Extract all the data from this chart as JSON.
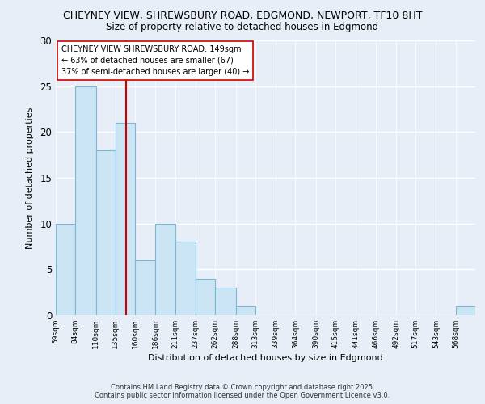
{
  "title_line1": "CHEYNEY VIEW, SHREWSBURY ROAD, EDGMOND, NEWPORT, TF10 8HT",
  "title_line2": "Size of property relative to detached houses in Edgmond",
  "xlabel": "Distribution of detached houses by size in Edgmond",
  "ylabel": "Number of detached properties",
  "bin_labels": [
    "59sqm",
    "84sqm",
    "110sqm",
    "135sqm",
    "160sqm",
    "186sqm",
    "211sqm",
    "237sqm",
    "262sqm",
    "288sqm",
    "313sqm",
    "339sqm",
    "364sqm",
    "390sqm",
    "415sqm",
    "441sqm",
    "466sqm",
    "492sqm",
    "517sqm",
    "543sqm",
    "568sqm"
  ],
  "bin_edges": [
    59,
    84,
    110,
    135,
    160,
    186,
    211,
    237,
    262,
    288,
    313,
    339,
    364,
    390,
    415,
    441,
    466,
    492,
    517,
    543,
    568,
    593
  ],
  "counts": [
    10,
    25,
    18,
    21,
    6,
    10,
    8,
    4,
    3,
    1,
    0,
    0,
    0,
    0,
    0,
    0,
    0,
    0,
    0,
    0,
    1
  ],
  "bar_color": "#cce5f5",
  "bar_edgecolor": "#7ab8d4",
  "vline_x": 149,
  "vline_color": "#cc0000",
  "annotation_text": "CHEYNEY VIEW SHREWSBURY ROAD: 149sqm\n← 63% of detached houses are smaller (67)\n37% of semi-detached houses are larger (40) →",
  "annotation_box_edgecolor": "#cc0000",
  "ylim": [
    0,
    30
  ],
  "yticks": [
    0,
    5,
    10,
    15,
    20,
    25,
    30
  ],
  "background_color": "#e8eef8",
  "footer_line1": "Contains HM Land Registry data © Crown copyright and database right 2025.",
  "footer_line2": "Contains public sector information licensed under the Open Government Licence v3.0."
}
